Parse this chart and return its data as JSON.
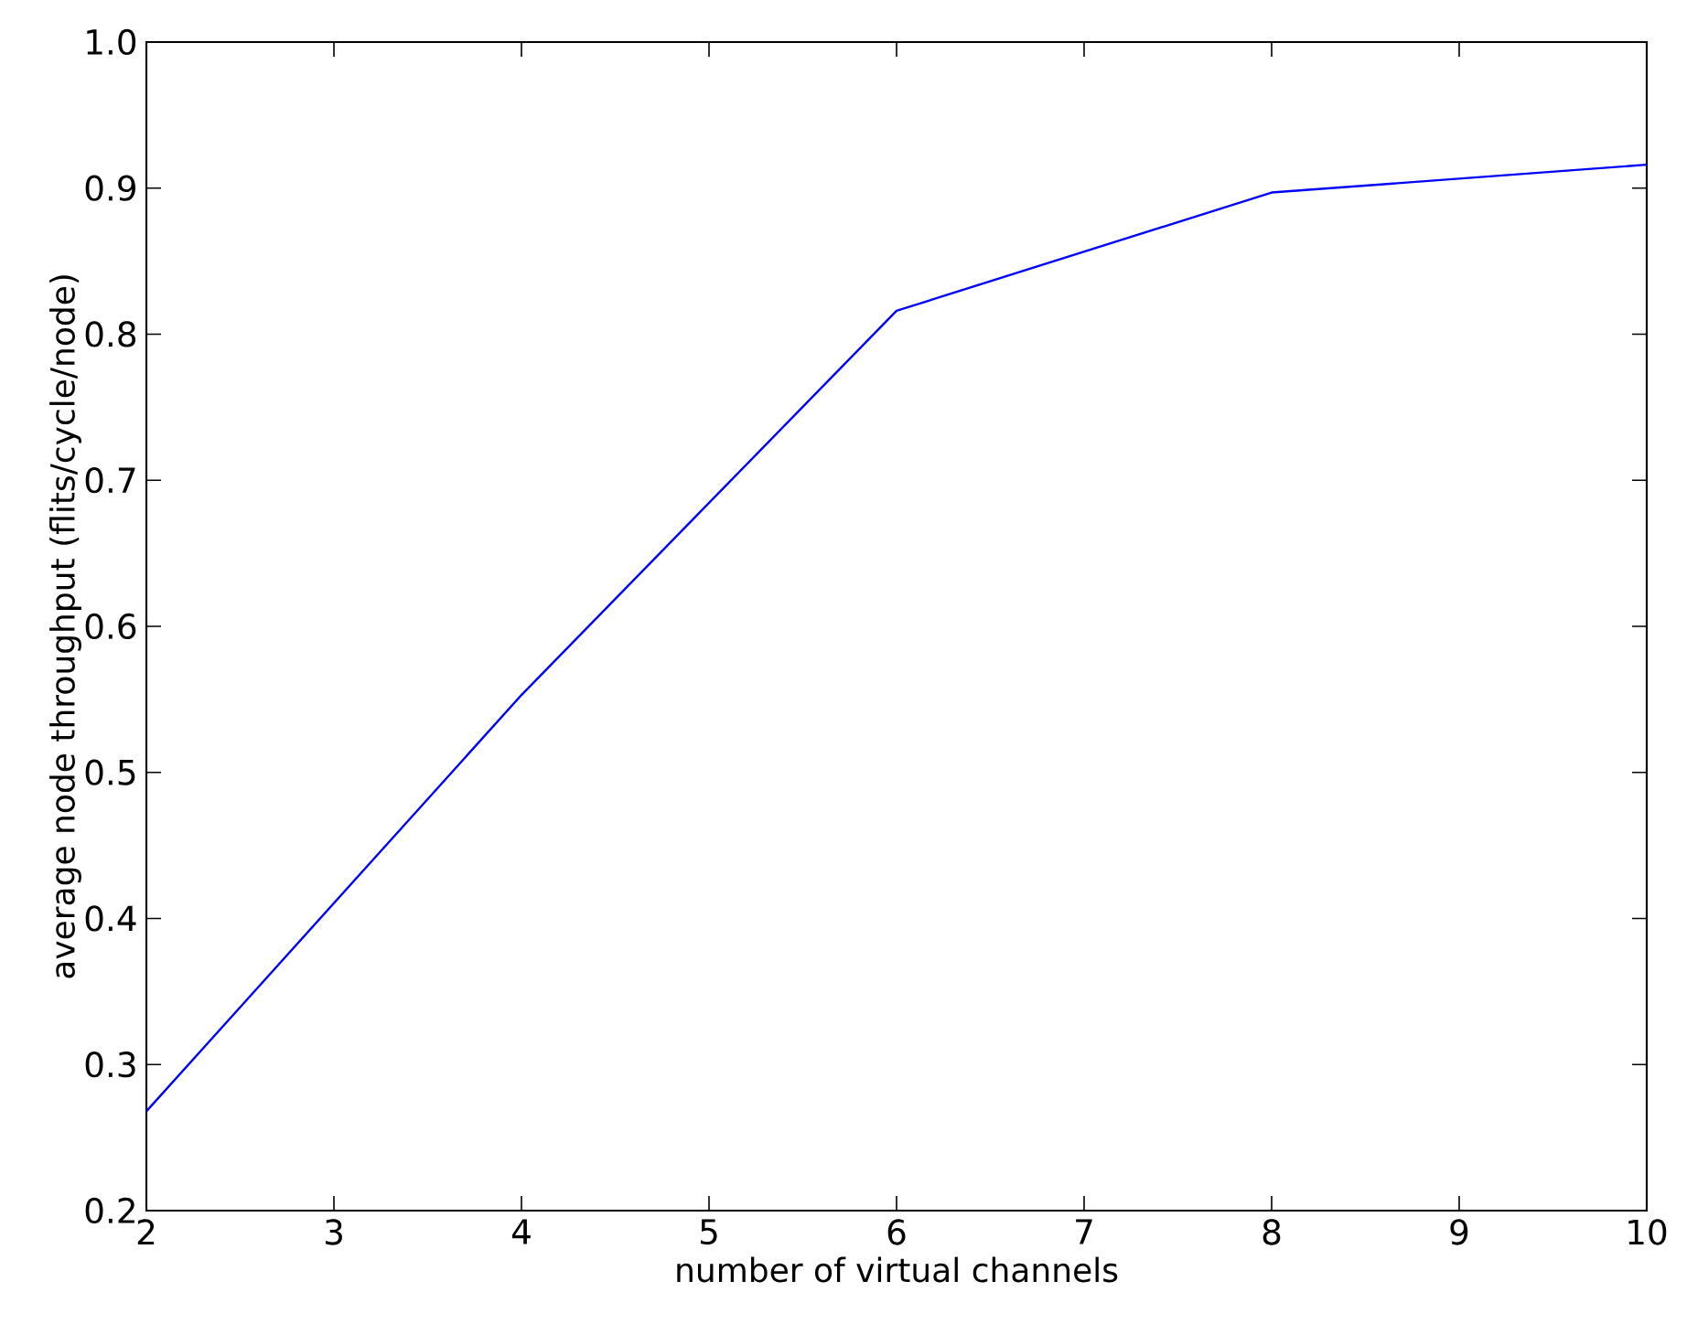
{
  "chart_data": {
    "type": "line",
    "xlabel": "number of virtual channels",
    "ylabel": "average node throughput (flits/cycle/node)",
    "x": [
      2,
      4,
      6,
      8,
      10
    ],
    "series": [
      {
        "color": "#0000ff",
        "values": [
          0.268,
          0.553,
          0.816,
          0.897,
          0.916
        ]
      }
    ],
    "xlim": [
      2,
      10
    ],
    "ylim": [
      0.2,
      1.0
    ],
    "xticks": [
      2,
      3,
      4,
      5,
      6,
      7,
      8,
      9,
      10
    ],
    "yticks": [
      {
        "value": 0.2,
        "label": "0.2"
      },
      {
        "value": 0.3,
        "label": "0.3"
      },
      {
        "value": 0.4,
        "label": "0.4"
      },
      {
        "value": 0.5,
        "label": "0.5"
      },
      {
        "value": 0.6,
        "label": "0.6"
      },
      {
        "value": 0.7,
        "label": "0.7"
      },
      {
        "value": 0.8,
        "label": "0.8"
      },
      {
        "value": 0.9,
        "label": "0.9"
      },
      {
        "value": 1.0,
        "label": "1.0"
      }
    ],
    "grid": false,
    "marker": "none",
    "line_style": "solid"
  }
}
